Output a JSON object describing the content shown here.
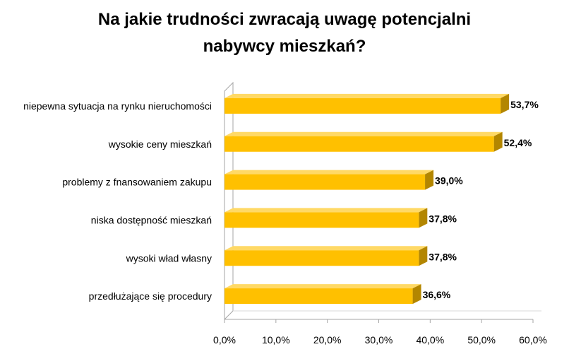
{
  "chart_data": {
    "type": "bar",
    "orientation": "horizontal",
    "title_lines": [
      "Na jakie trudności zwracają uwagę potencjalni",
      "nabywcy mieszkań?"
    ],
    "categories": [
      "niepewna sytuacja na rynku nieruchomości",
      "wysokie ceny mieszkań",
      "problemy z fnansowaniem zakupu",
      "niska dostępność mieszkań",
      "wysoki wład własny",
      "przedłużające się procedury"
    ],
    "values": [
      53.7,
      52.4,
      39.0,
      37.8,
      37.8,
      36.6
    ],
    "value_labels": [
      "53,7%",
      "52,4%",
      "39,0%",
      "37,8%",
      "37,8%",
      "36,6%"
    ],
    "xlim": [
      0,
      60
    ],
    "x_ticks": [
      "0,0%",
      "10,0%",
      "20,0%",
      "30,0%",
      "40,0%",
      "50,0%",
      "60,0%"
    ],
    "grid": false,
    "legend": "none",
    "bar_color": "#FFC000",
    "bar_side_color": "#B38600",
    "bar_top_color": "#FFD966",
    "wall_color": "#A6A6A6"
  }
}
